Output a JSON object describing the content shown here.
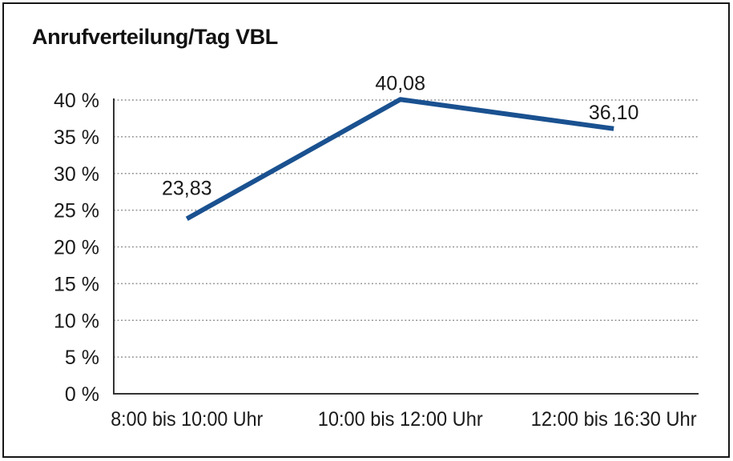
{
  "window": {
    "background": "#ffffff",
    "border_color": "#161616"
  },
  "chart_data": {
    "type": "line",
    "title": "Anrufverteilung/Tag VBL",
    "categories": [
      "8:00 bis 10:00 Uhr",
      "10:00 bis 12:00 Uhr",
      "12:00 bis 16:30 Uhr"
    ],
    "series": [
      {
        "values": [
          23.83,
          40.08,
          36.1
        ],
        "point_labels": [
          "23,83",
          "40,08",
          "36,10"
        ],
        "color": "#1a5190"
      }
    ],
    "xlabel": "",
    "ylabel": "",
    "unit": "%",
    "ylim": [
      0,
      40
    ],
    "ytick_values": [
      0,
      5,
      10,
      15,
      20,
      25,
      30,
      35,
      40
    ],
    "ytick_labels": [
      "0 %",
      "5 %",
      "10 %",
      "15 %",
      "20 %",
      "25 %",
      "30 %",
      "35 %",
      "40 %"
    ],
    "grid": "horizontal-dotted",
    "legend": "none",
    "markers": "none"
  },
  "style": {
    "grid_color": "#8c8c8c",
    "axis_color": "#333333",
    "text_color": "#1a1a1a",
    "line_width": 6
  }
}
